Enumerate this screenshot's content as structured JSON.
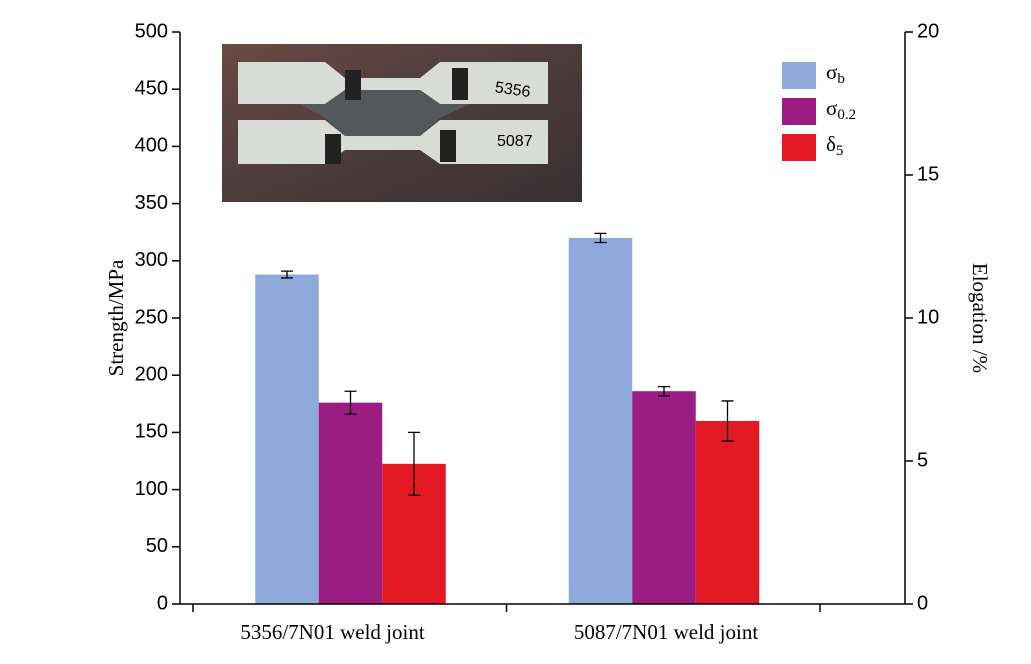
{
  "chart_data": {
    "type": "bar",
    "categories": [
      "5356/7N01 weld joint",
      "5087/7N01 weld joint"
    ],
    "ylabel": "Strength/MPa",
    "y2label": "Elogation /%",
    "ylim": [
      0,
      500
    ],
    "yticks": [
      0,
      50,
      100,
      150,
      200,
      250,
      300,
      350,
      400,
      450,
      500
    ],
    "y2lim": [
      0,
      20
    ],
    "y2ticks": [
      0,
      5,
      10,
      15,
      20
    ],
    "legend": "top-right",
    "series": [
      {
        "name": "σb",
        "color": "#8eaadb",
        "values": [
          288,
          320
        ],
        "errors": [
          3,
          4
        ]
      },
      {
        "name": "σ0.2",
        "color": "#9b1c82",
        "values": [
          176,
          186
        ],
        "errors": [
          10,
          4
        ]
      },
      {
        "name": "δ5",
        "color": "#e31a24",
        "values": [
          4.9,
          6.4
        ],
        "errors": [
          1.1,
          0.7
        ],
        "axis": "y2"
      }
    ]
  }
}
